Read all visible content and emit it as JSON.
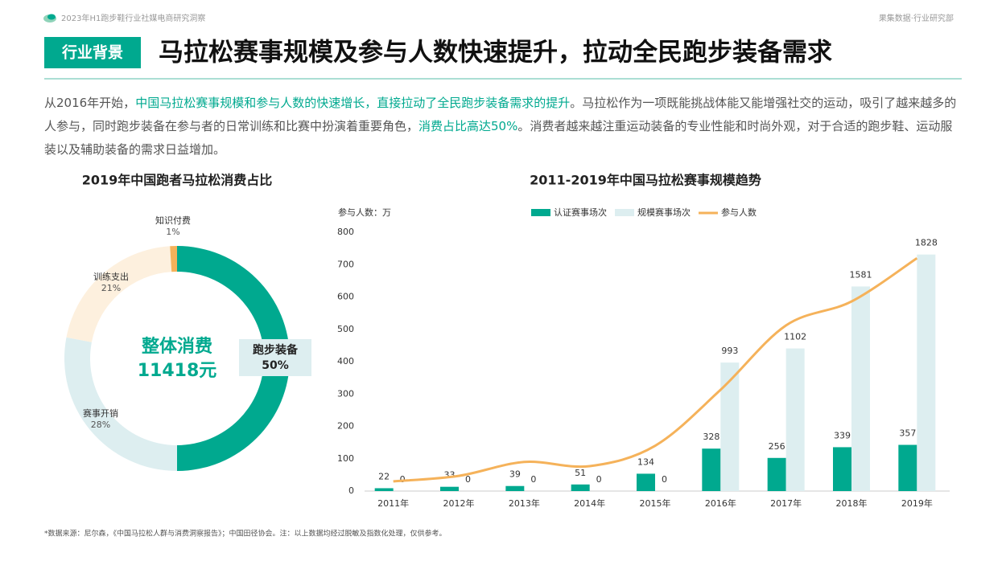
{
  "header": {
    "report": "2023年H1跑步鞋行业社媒电商研究洞察",
    "org": "果集数据·行业研究部",
    "tag": "行业背景",
    "title": "马拉松赛事规模及参与人数快速提升，拉动全民跑步装备需求"
  },
  "intro": [
    {
      "text": "从2016年开始，",
      "emphasis": false
    },
    {
      "text": "中国马拉松赛事规模和参与人数的快速增长，直接拉动了全民跑步装备需求的提升",
      "emphasis": true
    },
    {
      "text": "。马拉松作为一项既能挑战体能又能增强社交的运动，吸引了越来越多的人参与，同时跑步装备在参与者的日常训练和比赛中扮演着重要角色，",
      "emphasis": false
    },
    {
      "text": "消费占比高达50%",
      "emphasis": true
    },
    {
      "text": "。消费者越来越注重运动装备的专业性能和时尚外观，对于合适的跑步鞋、运动服装以及辅助装备的需求日益增加。",
      "emphasis": false
    }
  ],
  "chart_data": [
    {
      "type": "donut",
      "title": "2019年中国跑者马拉松消费占比",
      "center_label": "整体消费",
      "center_value": "11418元",
      "categories": [
        "跑步装备",
        "赛事开销",
        "训练支出",
        "知识付费"
      ],
      "values": [
        50,
        28,
        21,
        1
      ],
      "value_labels": [
        "50%",
        "28%",
        "21%",
        "1%"
      ],
      "colors": [
        "#00a98f",
        "#ddeef0",
        "#fdf0de",
        "#f5b25a"
      ]
    },
    {
      "type": "bar-line",
      "title": "2011-2019年中国马拉松赛事规模趋势",
      "ylabel": "参与人数：万",
      "categories": [
        "2011年",
        "2012年",
        "2013年",
        "2014年",
        "2015年",
        "2016年",
        "2017年",
        "2018年",
        "2019年"
      ],
      "ylim": [
        0,
        800
      ],
      "yticks": [
        0,
        100,
        200,
        300,
        400,
        500,
        600,
        700,
        800
      ],
      "y2lim": [
        0,
        2000
      ],
      "series": [
        {
          "name": "认证赛事场次",
          "type": "bar",
          "axis": "y2",
          "color": "#00a98f",
          "values": [
            22,
            33,
            39,
            51,
            134,
            328,
            256,
            339,
            357
          ]
        },
        {
          "name": "规模赛事场次",
          "type": "bar",
          "axis": "y2",
          "color": "#ddeef0",
          "values": [
            0,
            0,
            0,
            0,
            0,
            993,
            1102,
            1581,
            1828
          ]
        },
        {
          "name": "参与人数",
          "type": "line",
          "axis": "y",
          "color": "#f5b25a",
          "values": [
            30,
            47,
            90,
            77,
            140,
            313,
            512,
            586,
            720
          ]
        }
      ]
    }
  ],
  "footnote": "*数据来源：尼尔森，《中国马拉松人群与消费洞察报告》；中国田径协会。注：以上数据均经过脱敏及指数化处理，仅供参考。"
}
